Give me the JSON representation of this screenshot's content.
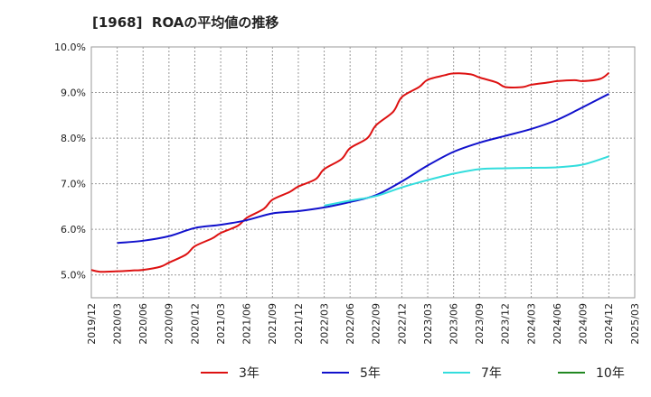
{
  "chart_data": {
    "type": "line",
    "title": "[1968]  ROAの平均値の推移",
    "x_ticks": [
      "2019/12",
      "2020/03",
      "2020/06",
      "2020/09",
      "2020/12",
      "2021/03",
      "2021/06",
      "2021/09",
      "2021/12",
      "2022/03",
      "2022/06",
      "2022/09",
      "2022/12",
      "2023/03",
      "2023/06",
      "2023/09",
      "2023/12",
      "2024/03",
      "2024/06",
      "2024/09",
      "2024/12",
      "2025/03"
    ],
    "y_ticks": [
      "5.0%",
      "6.0%",
      "7.0%",
      "8.0%",
      "9.0%",
      "10.0%"
    ],
    "ylim": [
      4.5,
      10.0
    ],
    "grid": true,
    "legend_position": "bottom",
    "series": [
      {
        "name": "3年",
        "color": "#dd1111",
        "x": [
          "2019/12",
          "2020/01",
          "2020/03",
          "2020/05",
          "2020/06",
          "2020/08",
          "2020/09",
          "2020/11",
          "2020/12",
          "2021/02",
          "2021/03",
          "2021/05",
          "2021/06",
          "2021/08",
          "2021/09",
          "2021/11",
          "2021/12",
          "2022/02",
          "2022/03",
          "2022/05",
          "2022/06",
          "2022/08",
          "2022/09",
          "2022/11",
          "2022/12",
          "2023/02",
          "2023/03",
          "2023/05",
          "2023/06",
          "2023/08",
          "2023/09",
          "2023/11",
          "2023/12",
          "2024/02",
          "2024/03",
          "2024/05",
          "2024/06",
          "2024/08",
          "2024/09",
          "2024/11",
          "2024/12"
        ],
        "values": [
          5.11,
          5.07,
          5.08,
          5.1,
          5.11,
          5.18,
          5.27,
          5.45,
          5.63,
          5.8,
          5.92,
          6.08,
          6.25,
          6.45,
          6.65,
          6.82,
          6.94,
          7.1,
          7.32,
          7.54,
          7.78,
          8.0,
          8.28,
          8.58,
          8.9,
          9.12,
          9.28,
          9.38,
          9.42,
          9.4,
          9.33,
          9.22,
          9.12,
          9.12,
          9.17,
          9.22,
          9.25,
          9.27,
          9.25,
          9.3,
          9.43
        ]
      },
      {
        "name": "5年",
        "color": "#1111cc",
        "x": [
          "2020/03",
          "2020/06",
          "2020/09",
          "2020/12",
          "2021/03",
          "2021/06",
          "2021/09",
          "2021/12",
          "2022/03",
          "2022/06",
          "2022/09",
          "2022/12",
          "2023/03",
          "2023/06",
          "2023/09",
          "2023/12",
          "2024/03",
          "2024/06",
          "2024/09",
          "2024/12"
        ],
        "values": [
          5.7,
          5.75,
          5.85,
          6.03,
          6.1,
          6.2,
          6.35,
          6.4,
          6.48,
          6.6,
          6.75,
          7.05,
          7.4,
          7.7,
          7.9,
          8.05,
          8.2,
          8.4,
          8.68,
          8.97
        ]
      },
      {
        "name": "7年",
        "color": "#33dddd",
        "x": [
          "2022/03",
          "2022/06",
          "2022/09",
          "2022/12",
          "2023/03",
          "2023/06",
          "2023/09",
          "2023/12",
          "2024/03",
          "2024/06",
          "2024/09",
          "2024/12"
        ],
        "values": [
          6.52,
          6.63,
          6.73,
          6.92,
          7.08,
          7.22,
          7.32,
          7.34,
          7.35,
          7.36,
          7.42,
          7.6
        ]
      },
      {
        "name": "10年",
        "color": "#228822",
        "x": [],
        "values": []
      }
    ]
  }
}
